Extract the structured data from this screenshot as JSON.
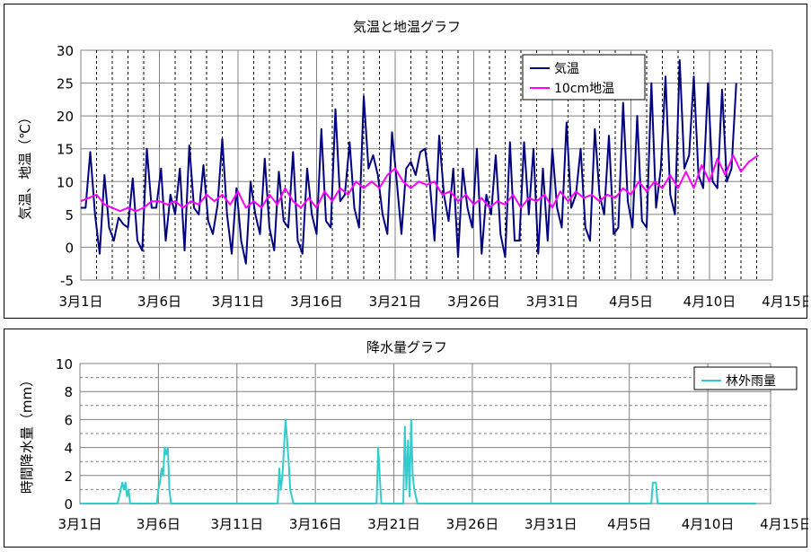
{
  "colors": {
    "air_temp": "#000080",
    "soil_temp": "#ff00ff",
    "rain": "#33cccc",
    "grid_major": "#000000",
    "grid_minor": "#000000"
  },
  "chart_data": [
    {
      "type": "line",
      "title": "気温と地温グラフ",
      "xlabel": "",
      "ylabel": "気温、地温（℃）",
      "ylim": [
        -5,
        30
      ],
      "yticks": [
        -5,
        0,
        5,
        10,
        15,
        20,
        25,
        30
      ],
      "xlim_day": [
        1,
        45
      ],
      "xtick_labels": [
        "3月1日",
        "3月6日",
        "3月11日",
        "3月16日",
        "3月21日",
        "3月26日",
        "3月31日",
        "4月5日",
        "4月10日",
        "4月15日"
      ],
      "legend_position": "top-right",
      "series": [
        {
          "name": "気温",
          "day": [
            1,
            1.3,
            1.6,
            1.9,
            2.2,
            2.5,
            2.8,
            3.1,
            3.4,
            3.7,
            4,
            4.3,
            4.6,
            4.9,
            5.2,
            5.5,
            5.8,
            6.1,
            6.4,
            6.7,
            7,
            7.3,
            7.6,
            7.9,
            8.2,
            8.5,
            8.8,
            9.1,
            9.4,
            9.7,
            10,
            10.3,
            10.6,
            10.9,
            11.2,
            11.5,
            11.8,
            12.1,
            12.4,
            12.7,
            13,
            13.3,
            13.6,
            13.9,
            14.2,
            14.5,
            14.8,
            15.1,
            15.4,
            15.7,
            16,
            16.3,
            16.6,
            16.9,
            17.2,
            17.5,
            17.8,
            18.1,
            18.4,
            18.7,
            19,
            19.3,
            19.6,
            19.9,
            20.2,
            20.5,
            20.8,
            21.1,
            21.4,
            21.7,
            22,
            22.3,
            22.6,
            22.9,
            23.2,
            23.5,
            23.8,
            24.1,
            24.4,
            24.7,
            25,
            25.3,
            25.6,
            25.9,
            26.2,
            26.5,
            26.8,
            27.1,
            27.4,
            27.7,
            28,
            28.3,
            28.6,
            28.9,
            29.2,
            29.5,
            29.8,
            30.1,
            30.4,
            30.7,
            31,
            31.3,
            31.6,
            31.9,
            32.2,
            32.5,
            32.8,
            33.1,
            33.4,
            33.7,
            34,
            34.3,
            34.6,
            34.9,
            35.2,
            35.5,
            35.8,
            36.1,
            36.4,
            36.7,
            37,
            37.3,
            37.6,
            37.9,
            38.2,
            38.5,
            38.8,
            39.1,
            39.4,
            39.7,
            40,
            40.3,
            40.6,
            40.9,
            41.2,
            41.5,
            41.8,
            42.1,
            42.4,
            42.7,
            43,
            43.3,
            43.6,
            43.9,
            44.1
          ],
          "values": [
            6,
            6,
            14.5,
            5,
            -1,
            11,
            3,
            1,
            4.5,
            3.5,
            3,
            10.5,
            1,
            -0.5,
            15,
            6,
            6,
            12,
            1,
            8,
            5,
            12,
            -0.5,
            15.5,
            6,
            5,
            12.5,
            4,
            2,
            6.5,
            16.5,
            5,
            -1,
            9,
            1,
            -2.5,
            10,
            5,
            2,
            13.5,
            3,
            -0.5,
            11.5,
            4,
            3,
            14.5,
            1,
            -1,
            12,
            5,
            2,
            18,
            4,
            3,
            21,
            7,
            8,
            16,
            6,
            3,
            23,
            12,
            14,
            11,
            5,
            2,
            17.5,
            10,
            2,
            12,
            13,
            11,
            14.5,
            15,
            10,
            1,
            17,
            8,
            4,
            12,
            -1.5,
            12,
            6,
            3,
            15,
            -1,
            8,
            5,
            14,
            2,
            -1.5,
            16,
            1,
            1,
            16,
            5,
            15,
            -1,
            12,
            1,
            15,
            6,
            3,
            19,
            6,
            8,
            15,
            3,
            1,
            18,
            8,
            5,
            17,
            2,
            3,
            22,
            7,
            3,
            20,
            4,
            3,
            25,
            6,
            12,
            26,
            8,
            5,
            28.5,
            12,
            14,
            26,
            11,
            9,
            25,
            10,
            9,
            24,
            10,
            12,
            25
          ],
          "color_key": "air_temp"
        },
        {
          "name": "10cm地温",
          "day": [
            1,
            2,
            2.5,
            3,
            3.5,
            4,
            4.5,
            5,
            5.5,
            6,
            6.5,
            7,
            7.5,
            8,
            8.5,
            9,
            9.5,
            10,
            10.5,
            11,
            11.5,
            12,
            12.5,
            13,
            13.5,
            14,
            14.5,
            15,
            15.5,
            16,
            16.5,
            17,
            17.5,
            18,
            18.5,
            19,
            19.5,
            20,
            20.5,
            21,
            21.5,
            22,
            22.5,
            23,
            23.5,
            24,
            24.5,
            25,
            25.5,
            26,
            26.5,
            27,
            27.5,
            28,
            28.5,
            29,
            29.5,
            30,
            30.5,
            31,
            31.5,
            32,
            32.5,
            33,
            33.5,
            34,
            34.5,
            35,
            35.5,
            36,
            36.5,
            37,
            37.5,
            38,
            38.5,
            39,
            39.5,
            40,
            40.5,
            41,
            41.5,
            42,
            42.5,
            43,
            43.5,
            44.1
          ],
          "values": [
            7,
            8,
            6.5,
            6,
            5.5,
            6,
            5.5,
            6,
            7,
            7,
            6.5,
            7,
            6,
            7,
            6.5,
            8,
            7,
            8,
            6.5,
            8.5,
            6,
            7,
            6,
            8,
            6.5,
            9,
            7,
            6,
            7.5,
            6,
            8.5,
            7,
            9,
            8,
            10,
            9,
            10,
            9,
            11,
            12,
            10,
            9,
            10,
            9.5,
            10,
            8,
            8.5,
            7,
            8,
            6.5,
            7.5,
            6,
            7,
            6.5,
            8,
            6,
            7.5,
            7,
            8,
            6,
            8.5,
            7,
            8.5,
            7.5,
            8,
            7,
            8,
            7.5,
            9,
            8,
            10,
            8.5,
            10,
            9,
            11,
            9,
            11.5,
            9,
            12.5,
            10,
            13.5,
            11,
            14,
            11.5,
            13,
            14
          ],
          "color_key": "soil_temp"
        }
      ]
    },
    {
      "type": "line",
      "title": "降水量グラフ",
      "xlabel": "",
      "ylabel": "時間降水量（mm）",
      "ylim": [
        0,
        10
      ],
      "yticks": [
        0,
        2,
        4,
        6,
        8,
        10
      ],
      "xlim_day": [
        1,
        45
      ],
      "xtick_labels": [
        "3月1日",
        "3月6日",
        "3月11日",
        "3月16日",
        "3月21日",
        "3月26日",
        "3月31日",
        "4月5日",
        "4月10日",
        "4月15日"
      ],
      "legend_position": "top-right",
      "series": [
        {
          "name": "林外雨量",
          "day": [
            1,
            3.4,
            3.5,
            3.6,
            3.7,
            3.8,
            3.9,
            4,
            4.1,
            4.2,
            5.9,
            6,
            6.1,
            6.2,
            6.3,
            6.4,
            6.5,
            6.6,
            6.7,
            6.8,
            13.6,
            13.7,
            13.8,
            13.9,
            14,
            14.1,
            14.2,
            14.3,
            14.4,
            14.5,
            14.6,
            19.9,
            20,
            20.1,
            20.2,
            21.6,
            21.7,
            21.8,
            21.9,
            22,
            22.1,
            22.2,
            22.3,
            22.4,
            22.5,
            37.4,
            37.5,
            37.6,
            37.7,
            37.8,
            44.1
          ],
          "values": [
            0,
            0,
            0.5,
            1,
            1.5,
            1,
            1.5,
            0.5,
            1,
            0,
            0,
            1,
            1.5,
            2.5,
            2,
            4,
            3.5,
            4,
            1,
            0,
            0,
            2.5,
            1,
            2,
            4,
            6,
            4.5,
            3,
            1,
            0.5,
            0,
            0,
            4,
            2,
            0,
            0,
            5.5,
            1,
            4.5,
            0.5,
            6,
            2,
            1,
            0.5,
            0,
            0,
            1.5,
            1.5,
            1.5,
            0,
            0
          ],
          "color_key": "rain"
        }
      ]
    }
  ]
}
